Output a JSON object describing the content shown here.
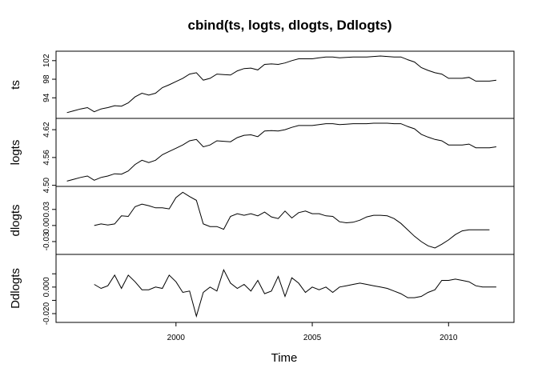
{
  "chart_data": {
    "type": "line",
    "title": "cbind(ts, logts, dlogts, Ddlogts)",
    "xlabel": "Time",
    "xlim": [
      1995.6,
      2012.4
    ],
    "x_ticks": [
      2000,
      2005,
      2010
    ],
    "x_tick_labels": [
      "2000",
      "2005",
      "2010"
    ],
    "x": [
      1996.0,
      1996.25,
      1996.5,
      1996.75,
      1997.0,
      1997.25,
      1997.5,
      1997.75,
      1998.0,
      1998.25,
      1998.5,
      1998.75,
      1999.0,
      1999.25,
      1999.5,
      1999.75,
      2000.0,
      2000.25,
      2000.5,
      2000.75,
      2001.0,
      2001.25,
      2001.5,
      2001.75,
      2002.0,
      2002.25,
      2002.5,
      2002.75,
      2003.0,
      2003.25,
      2003.5,
      2003.75,
      2004.0,
      2004.25,
      2004.5,
      2004.75,
      2005.0,
      2005.25,
      2005.5,
      2005.75,
      2006.0,
      2006.25,
      2006.5,
      2006.75,
      2007.0,
      2007.25,
      2007.5,
      2007.75,
      2008.0,
      2008.25,
      2008.5,
      2008.75,
      2009.0,
      2009.25,
      2009.5,
      2009.75,
      2010.0,
      2010.25,
      2010.5,
      2010.75,
      2011.0,
      2011.25,
      2011.5,
      2011.75
    ],
    "series": [
      {
        "name": "ts",
        "yticks": [
          94,
          98,
          102
        ],
        "ytick_labels": [
          "94",
          "98",
          "102"
        ],
        "ylim": [
          90.6,
          103.0
        ],
        "values": [
          90.8,
          91.2,
          91.6,
          91.9,
          91.0,
          91.6,
          91.9,
          92.3,
          92.2,
          92.9,
          94.2,
          95.0,
          94.6,
          95.0,
          96.2,
          96.8,
          97.5,
          98.2,
          99.1,
          99.4,
          97.8,
          98.2,
          99.1,
          99.0,
          98.9,
          99.8,
          100.3,
          100.4,
          100.0,
          101.2,
          101.3,
          101.2,
          101.5,
          102.0,
          102.4,
          102.4,
          102.4,
          102.6,
          102.8,
          102.8,
          102.6,
          102.7,
          102.8,
          102.8,
          102.8,
          102.9,
          103.0,
          102.9,
          102.8,
          102.8,
          102.2,
          101.7,
          100.5,
          99.9,
          99.4,
          99.1,
          98.2,
          98.2,
          98.2,
          98.4,
          97.6,
          97.6,
          97.6,
          97.8
        ],
        "line_values": [
          90.8,
          91.2,
          91.6,
          91.9,
          91.0,
          91.6,
          91.9,
          92.3,
          92.2,
          92.9,
          94.2,
          95.0,
          94.6,
          95.0,
          96.2,
          96.8,
          97.5,
          98.2,
          99.1,
          99.4,
          97.8,
          98.2,
          99.1,
          99.0,
          98.9,
          99.8,
          100.3,
          100.4,
          100.0,
          101.2,
          101.3,
          101.2,
          101.5,
          102.0,
          102.4,
          102.4,
          102.4,
          102.6,
          102.8,
          102.8,
          102.6,
          102.7,
          102.8,
          102.8,
          102.8,
          102.9,
          103.0,
          102.9,
          102.8,
          102.8,
          102.2,
          101.7,
          100.5,
          99.9,
          99.4,
          99.1,
          98.2,
          98.2,
          98.2,
          98.4,
          97.6,
          97.6,
          97.6,
          97.8
        ]
      },
      {
        "name": "logts",
        "yticks": [
          4.5,
          4.56,
          4.62
        ],
        "ytick_labels": [
          "4.50",
          "4.56",
          "4.62"
        ],
        "ylim": [
          4.508,
          4.634
        ],
        "values": [
          4.509,
          4.513,
          4.517,
          4.52,
          4.511,
          4.517,
          4.52,
          4.525,
          4.524,
          4.531,
          4.545,
          4.554,
          4.549,
          4.554,
          4.566,
          4.573,
          4.58,
          4.587,
          4.596,
          4.599,
          4.583,
          4.587,
          4.596,
          4.595,
          4.594,
          4.603,
          4.608,
          4.609,
          4.605,
          4.617,
          4.618,
          4.617,
          4.62,
          4.625,
          4.629,
          4.629,
          4.629,
          4.631,
          4.633,
          4.633,
          4.631,
          4.632,
          4.633,
          4.633,
          4.633,
          4.634,
          4.634,
          4.634,
          4.633,
          4.633,
          4.627,
          4.622,
          4.61,
          4.604,
          4.599,
          4.596,
          4.587,
          4.587,
          4.587,
          4.589,
          4.581,
          4.581,
          4.581,
          4.583
        ]
      },
      {
        "name": "dlogts",
        "yticks": [
          -0.03,
          0.0,
          0.03
        ],
        "ytick_labels": [
          "-0.03",
          "0.00",
          "0.03"
        ],
        "ylim": [
          -0.045,
          0.064
        ],
        "values": [
          null,
          null,
          null,
          null,
          0.0,
          0.003,
          0.001,
          0.003,
          0.018,
          0.017,
          0.035,
          0.04,
          0.037,
          0.033,
          0.033,
          0.031,
          0.052,
          0.062,
          0.054,
          0.047,
          0.003,
          -0.002,
          -0.002,
          -0.007,
          0.017,
          0.022,
          0.019,
          0.022,
          0.018,
          0.025,
          0.016,
          0.013,
          0.027,
          0.014,
          0.024,
          0.027,
          0.022,
          0.022,
          0.018,
          0.017,
          0.007,
          0.005,
          0.006,
          0.01,
          0.016,
          0.019,
          0.019,
          0.018,
          0.013,
          0.004,
          -0.008,
          -0.02,
          -0.03,
          -0.038,
          -0.042,
          -0.035,
          -0.027,
          -0.017,
          -0.01,
          -0.008,
          -0.008,
          -0.008,
          -0.008,
          null
        ]
      },
      {
        "name": "Ddlogts",
        "yticks": [
          -0.02,
          -0.01,
          0.0,
          0.01
        ],
        "ytick_labels": [
          "-0.020",
          "",
          "0.000",
          ""
        ],
        "ylim": [
          -0.023,
          0.021
        ],
        "values": [
          null,
          null,
          null,
          null,
          0.002,
          -0.001,
          0.001,
          0.009,
          -0.001,
          0.009,
          0.004,
          -0.002,
          -0.002,
          0.0,
          -0.001,
          0.009,
          0.004,
          -0.004,
          -0.003,
          -0.022,
          -0.004,
          0.0,
          -0.003,
          0.013,
          0.003,
          -0.001,
          0.002,
          -0.003,
          0.005,
          -0.005,
          -0.003,
          0.008,
          -0.007,
          0.007,
          0.003,
          -0.004,
          0.0,
          -0.002,
          0.0,
          -0.004,
          0.0,
          0.001,
          0.002,
          0.003,
          0.002,
          0.001,
          0.0,
          -0.001,
          -0.003,
          -0.005,
          -0.008,
          -0.008,
          -0.007,
          -0.004,
          -0.002,
          0.005,
          0.005,
          0.006,
          0.005,
          0.004,
          0.001,
          0.0,
          0.0,
          0.0
        ]
      }
    ]
  }
}
